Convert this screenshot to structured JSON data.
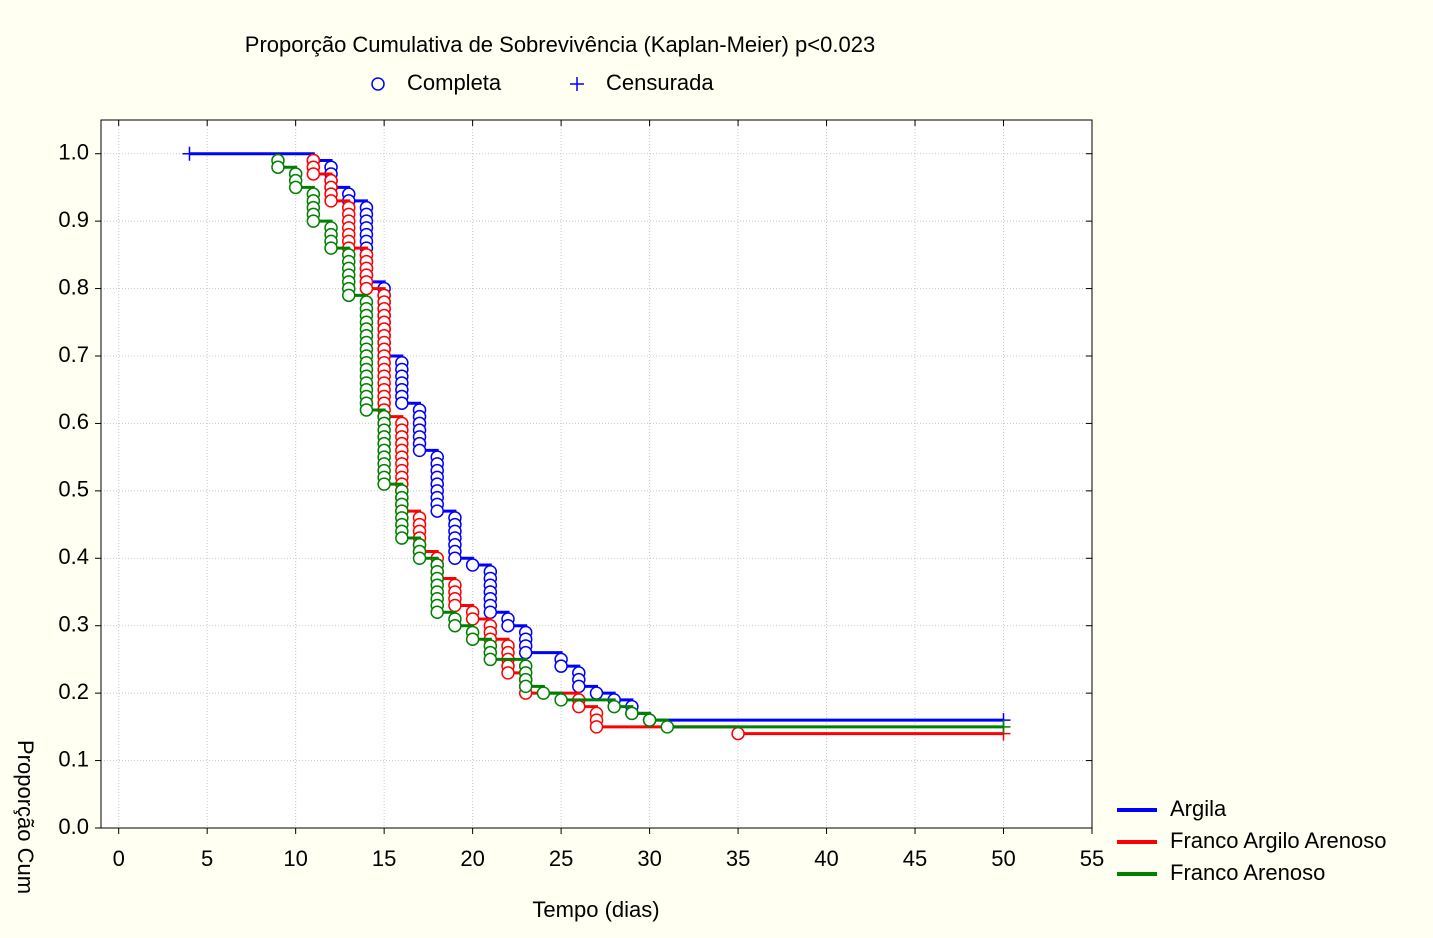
{
  "chart_data": {
    "type": "survival",
    "title": "Proporção Cumulativa de Sobrevivência (Kaplan-Meier) p<0.023",
    "marker_legend": {
      "event": "Completa",
      "censored": "Censurada"
    },
    "x_label": "Tempo (dias)",
    "y_label": "Proporção Cum",
    "xlim": [
      -1,
      55
    ],
    "xticks": [
      0,
      5,
      10,
      15,
      20,
      25,
      30,
      35,
      40,
      45,
      50,
      55
    ],
    "ylim": [
      0,
      1.05
    ],
    "yticks": [
      {
        "value": 0,
        "label": "0.0"
      },
      0.1,
      0.2,
      0.3,
      0.4,
      0.5,
      0.6,
      0.7,
      0.8,
      0.9,
      {
        "value": 1,
        "label": "1.0"
      }
    ],
    "grid": true,
    "legend": "bottom-right",
    "series": [
      {
        "name": "Argila",
        "color": "#0000ff",
        "x": [
          11,
          12,
          12,
          12,
          12,
          13,
          13,
          14,
          14,
          14,
          14,
          14,
          14,
          14,
          14,
          14,
          14,
          14,
          14,
          15,
          15,
          15,
          15,
          15,
          15,
          15,
          15,
          15,
          15,
          15,
          16,
          16,
          16,
          16,
          16,
          16,
          16,
          17,
          17,
          17,
          17,
          17,
          17,
          17,
          18,
          18,
          18,
          18,
          18,
          18,
          18,
          18,
          18,
          19,
          19,
          19,
          19,
          19,
          19,
          19,
          20,
          21,
          21,
          21,
          21,
          21,
          21,
          21,
          22,
          22,
          23,
          23,
          23,
          23,
          25,
          25,
          26,
          26,
          26,
          27,
          28,
          29,
          29,
          30
        ],
        "values": [
          0.99,
          0.98,
          0.97,
          0.96,
          0.95,
          0.94,
          0.93,
          0.92,
          0.91,
          0.9,
          0.89,
          0.88,
          0.87,
          0.86,
          0.85,
          0.84,
          0.83,
          0.82,
          0.81,
          0.8,
          0.79,
          0.78,
          0.77,
          0.76,
          0.75,
          0.74,
          0.73,
          0.72,
          0.71,
          0.7,
          0.69,
          0.68,
          0.67,
          0.66,
          0.65,
          0.64,
          0.63,
          0.62,
          0.61,
          0.6,
          0.59,
          0.58,
          0.57,
          0.56,
          0.55,
          0.54,
          0.53,
          0.52,
          0.51,
          0.5,
          0.49,
          0.48,
          0.47,
          0.46,
          0.45,
          0.44,
          0.43,
          0.42,
          0.41,
          0.4,
          0.39,
          0.38,
          0.37,
          0.36,
          0.35,
          0.34,
          0.33,
          0.32,
          0.31,
          0.3,
          0.29,
          0.28,
          0.27,
          0.26,
          0.25,
          0.24,
          0.23,
          0.22,
          0.21,
          0.2,
          0.19,
          0.18,
          0.17,
          0.16
        ],
        "censored_x": [
          4,
          50
        ],
        "censored_values": [
          1.0,
          0.16
        ]
      },
      {
        "name": "Franco Argilo Arenoso",
        "color": "#ff0000",
        "x": [
          11,
          11,
          11,
          12,
          12,
          12,
          12,
          13,
          13,
          13,
          13,
          13,
          13,
          13,
          14,
          14,
          14,
          14,
          14,
          14,
          15,
          15,
          15,
          15,
          15,
          15,
          15,
          15,
          15,
          15,
          15,
          15,
          15,
          15,
          15,
          15,
          15,
          15,
          15,
          16,
          16,
          16,
          16,
          16,
          16,
          16,
          16,
          16,
          16,
          16,
          16,
          16,
          16,
          17,
          17,
          17,
          17,
          17,
          17,
          18,
          18,
          18,
          18,
          19,
          19,
          19,
          19,
          20,
          20,
          21,
          21,
          21,
          22,
          22,
          22,
          22,
          22,
          23,
          23,
          23,
          26,
          26,
          27,
          27,
          27,
          35
        ],
        "values": [
          0.99,
          0.98,
          0.97,
          0.96,
          0.95,
          0.94,
          0.93,
          0.92,
          0.91,
          0.9,
          0.89,
          0.88,
          0.87,
          0.86,
          0.85,
          0.84,
          0.83,
          0.82,
          0.81,
          0.8,
          0.79,
          0.78,
          0.77,
          0.76,
          0.75,
          0.74,
          0.73,
          0.72,
          0.71,
          0.7,
          0.69,
          0.68,
          0.67,
          0.66,
          0.65,
          0.64,
          0.63,
          0.62,
          0.61,
          0.6,
          0.59,
          0.58,
          0.57,
          0.56,
          0.55,
          0.54,
          0.53,
          0.52,
          0.51,
          0.5,
          0.49,
          0.48,
          0.47,
          0.46,
          0.45,
          0.44,
          0.43,
          0.42,
          0.41,
          0.4,
          0.39,
          0.38,
          0.37,
          0.36,
          0.35,
          0.34,
          0.33,
          0.32,
          0.31,
          0.3,
          0.29,
          0.28,
          0.27,
          0.26,
          0.25,
          0.24,
          0.23,
          0.22,
          0.21,
          0.2,
          0.19,
          0.18,
          0.17,
          0.16,
          0.15,
          0.14
        ],
        "censored_x": [
          50
        ],
        "censored_values": [
          0.14
        ]
      },
      {
        "name": "Franco Arenoso",
        "color": "#008000",
        "x": [
          9,
          9,
          10,
          10,
          10,
          11,
          11,
          11,
          11,
          11,
          12,
          12,
          12,
          12,
          13,
          13,
          13,
          13,
          13,
          13,
          13,
          14,
          14,
          14,
          14,
          14,
          14,
          14,
          14,
          14,
          14,
          14,
          14,
          14,
          14,
          14,
          14,
          14,
          15,
          15,
          15,
          15,
          15,
          15,
          15,
          15,
          15,
          15,
          15,
          16,
          16,
          16,
          16,
          16,
          16,
          16,
          16,
          17,
          17,
          17,
          18,
          18,
          18,
          18,
          18,
          18,
          18,
          18,
          19,
          19,
          20,
          20,
          21,
          21,
          21,
          23,
          23,
          23,
          23,
          24,
          25,
          28,
          29,
          30,
          31
        ],
        "values": [
          0.99,
          0.98,
          0.97,
          0.96,
          0.95,
          0.94,
          0.93,
          0.92,
          0.91,
          0.9,
          0.89,
          0.88,
          0.87,
          0.86,
          0.85,
          0.84,
          0.83,
          0.82,
          0.81,
          0.8,
          0.79,
          0.78,
          0.77,
          0.76,
          0.75,
          0.74,
          0.73,
          0.72,
          0.71,
          0.7,
          0.69,
          0.68,
          0.67,
          0.66,
          0.65,
          0.64,
          0.63,
          0.62,
          0.61,
          0.6,
          0.59,
          0.58,
          0.57,
          0.56,
          0.55,
          0.54,
          0.53,
          0.52,
          0.51,
          0.5,
          0.49,
          0.48,
          0.47,
          0.46,
          0.45,
          0.44,
          0.43,
          0.42,
          0.41,
          0.4,
          0.39,
          0.38,
          0.37,
          0.36,
          0.35,
          0.34,
          0.33,
          0.32,
          0.31,
          0.3,
          0.29,
          0.28,
          0.27,
          0.26,
          0.25,
          0.24,
          0.23,
          0.22,
          0.21,
          0.2,
          0.19,
          0.18,
          0.17,
          0.16,
          0.15
        ],
        "censored_x": [
          50
        ],
        "censored_values": [
          0.15
        ]
      }
    ]
  }
}
